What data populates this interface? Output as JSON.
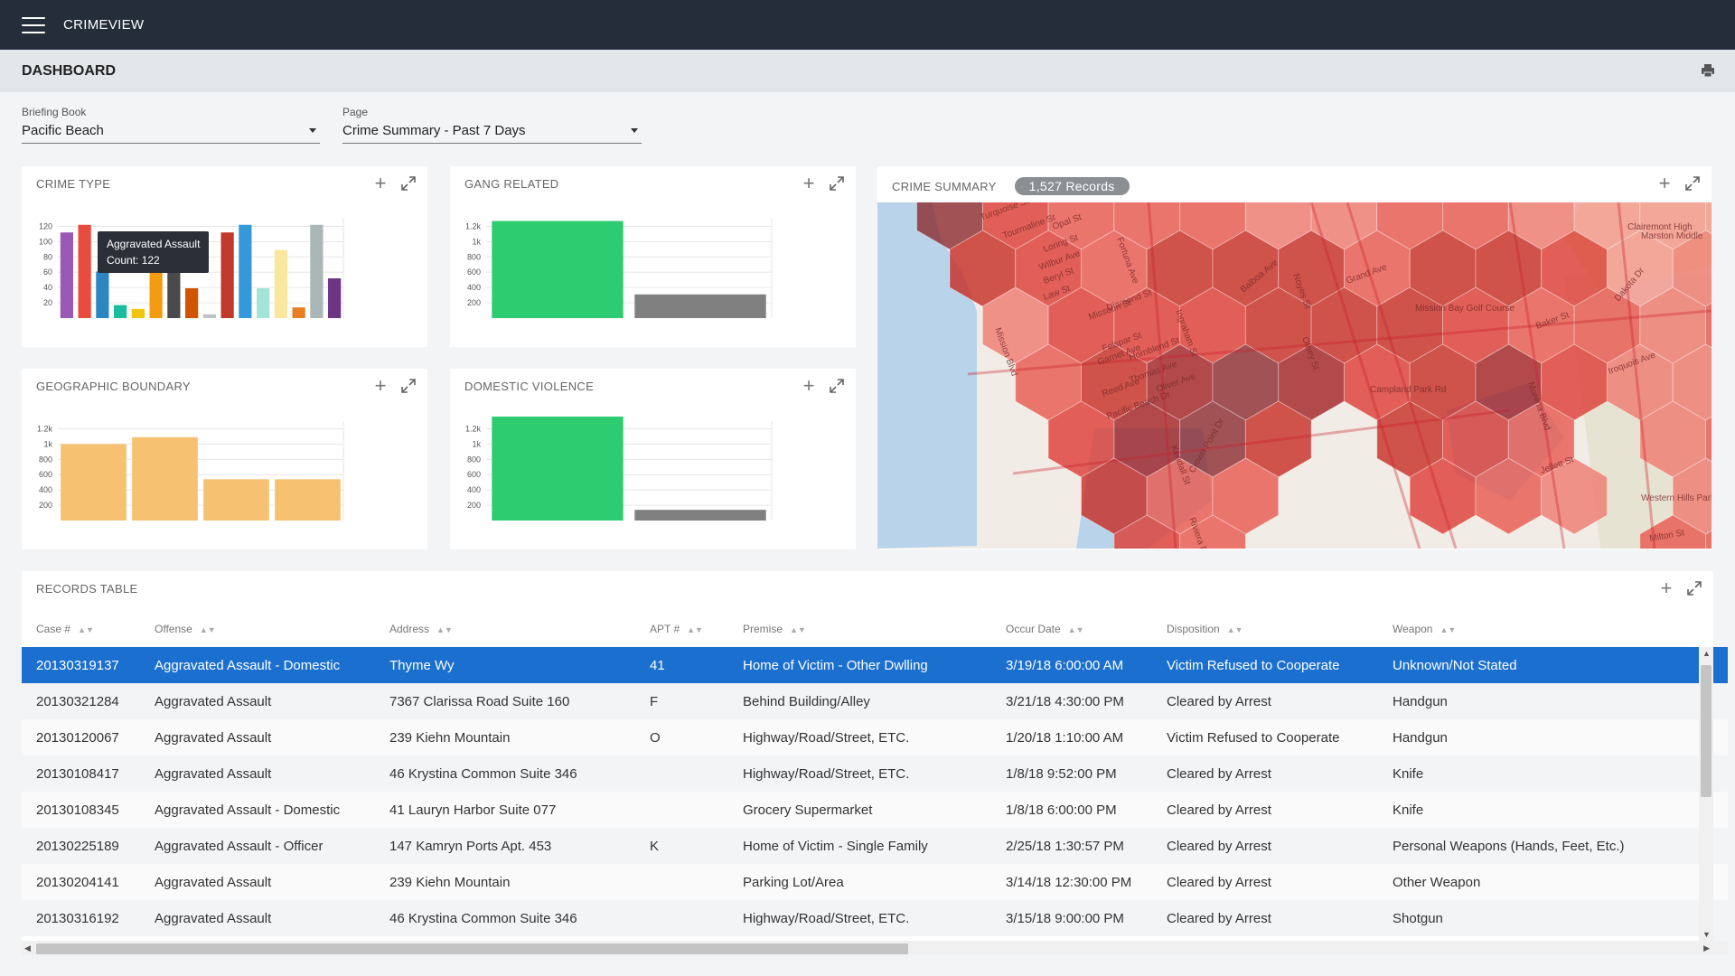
{
  "app": {
    "title": "CRIMEVIEW"
  },
  "page": {
    "title": "DASHBOARD"
  },
  "icons": {
    "menu": "hamburger-menu-icon",
    "print": "printer-icon",
    "add": "plus-icon",
    "expand": "expand-icon",
    "sort": "sort-icon"
  },
  "filters": {
    "briefing_book": {
      "label": "Briefing Book",
      "value": "Pacific Beach"
    },
    "page": {
      "label": "Page",
      "value": "Crime Summary - Past 7 Days"
    }
  },
  "cards": {
    "crime_type": {
      "title": "CRIME TYPE"
    },
    "gang_related": {
      "title": "GANG RELATED"
    },
    "geographic_boundary": {
      "title": "GEOGRAPHIC BOUNDARY"
    },
    "domestic_violence": {
      "title": "DOMESTIC VIOLENCE"
    },
    "crime_summary": {
      "title": "CRIME SUMMARY",
      "badge": "1,527 Records"
    },
    "records_table": {
      "title": "RECORDS TABLE"
    }
  },
  "tooltip": {
    "line1": "Aggravated Assault",
    "line2": "Count: 122"
  },
  "chart_data": [
    {
      "id": "crime_type",
      "type": "bar",
      "ylim": [
        0,
        130
      ],
      "yticks": [
        20,
        40,
        60,
        80,
        100,
        120
      ],
      "ytick_labels": [
        "20",
        "40",
        "60",
        "80",
        "100",
        "120"
      ],
      "values": [
        112,
        122,
        61,
        17,
        12,
        112,
        112,
        39,
        5,
        112,
        122,
        39,
        89,
        14,
        122,
        52
      ],
      "colors": [
        "#9b59b6",
        "#e74c3c",
        "#2e86c1",
        "#1abc9c",
        "#f1c40f",
        "#f39c12",
        "#4a4a4a",
        "#d35400",
        "#bdc3c7",
        "#c0392b",
        "#3498db",
        "#a3e4d7",
        "#f9e79f",
        "#e67e22",
        "#aab7b8",
        "#6c3483"
      ]
    },
    {
      "id": "gang_related",
      "type": "bar",
      "ylim": [
        0,
        1300
      ],
      "yticks": [
        200,
        400,
        600,
        800,
        1000,
        1200
      ],
      "ytick_labels": [
        "200",
        "400",
        "600",
        "800",
        "1k",
        "1.2k"
      ],
      "values": [
        1270,
        310
      ],
      "colors": [
        "#2ecc71",
        "#808080"
      ]
    },
    {
      "id": "geographic_boundary",
      "type": "bar",
      "ylim": [
        0,
        1300
      ],
      "yticks": [
        200,
        400,
        600,
        800,
        1000,
        1200
      ],
      "ytick_labels": [
        "200",
        "400",
        "600",
        "800",
        "1k",
        "1.2k"
      ],
      "values": [
        1000,
        1090,
        540,
        540
      ],
      "colors": [
        "#f6c271",
        "#f6c271",
        "#f6c271",
        "#f6c271"
      ]
    },
    {
      "id": "domestic_violence",
      "type": "bar",
      "ylim": [
        0,
        1300
      ],
      "yticks": [
        200,
        400,
        600,
        800,
        1000,
        1200
      ],
      "ytick_labels": [
        "200",
        "400",
        "600",
        "800",
        "1k",
        "1.2k"
      ],
      "values": [
        1360,
        140
      ],
      "colors": [
        "#2ecc71",
        "#808080"
      ]
    }
  ],
  "map": {
    "street_labels": [
      "Turquoise St",
      "Tourmaline St",
      "Opal St",
      "Loring St",
      "Wilbur Ave",
      "Beryl St",
      "Law St",
      "Fortuna Ave",
      "Grand Ave",
      "Mission Blvd",
      "Missouri St",
      "Diamond St",
      "Felspar St",
      "Garnet Ave",
      "Hornblend St",
      "Thomas Ave",
      "Reed Ave",
      "Oliver Ave",
      "Pacific Beach Dr",
      "Crown Point Dr",
      "Balboa Ave",
      "Olney St",
      "Noyes St",
      "Kendall St",
      "Ingraham St",
      "Riviera Dr",
      "Dakota Dr",
      "Baker St",
      "Iroquois Ave",
      "Morena Blvd",
      "Jellett St",
      "Milton St",
      "Marston Middle",
      "Western Hills Park",
      "Campland Park Rd",
      "Mission Bay Golf Course",
      "Clairemont High"
    ]
  },
  "table": {
    "columns": [
      "Case #",
      "Offense",
      "Address",
      "APT #",
      "Premise",
      "Occur Date",
      "Disposition",
      "Weapon"
    ],
    "rows": [
      [
        "20130319137",
        "Aggravated Assault - Domestic",
        "Thyme Wy",
        "41",
        "Home of Victim - Other Dwlling",
        "3/19/18 6:00:00 AM",
        "Victim Refused to Cooperate",
        "Unknown/Not Stated"
      ],
      [
        "20130321284",
        "Aggravated Assault",
        "7367 Clarissa Road Suite 160",
        "F",
        "Behind Building/Alley",
        "3/21/18 4:30:00 PM",
        "Cleared by Arrest",
        "Handgun"
      ],
      [
        "20130120067",
        "Aggravated Assault",
        "239 Kiehn Mountain",
        "O",
        "Highway/Road/Street, ETC.",
        "1/20/18 1:10:00 AM",
        "Victim Refused to Cooperate",
        "Handgun"
      ],
      [
        "20130108417",
        "Aggravated Assault",
        "46 Krystina Common Suite 346",
        "",
        "Highway/Road/Street, ETC.",
        "1/8/18 9:52:00 PM",
        "Cleared by Arrest",
        "Knife"
      ],
      [
        "20130108345",
        "Aggravated Assault - Domestic",
        "41 Lauryn Harbor Suite 077",
        "",
        "Grocery Supermarket",
        "1/8/18 6:00:00 PM",
        "Cleared by Arrest",
        "Knife"
      ],
      [
        "20130225189",
        "Aggravated Assault - Officer",
        "147 Kamryn Ports Apt. 453",
        "K",
        "Home of Victim - Single Family",
        "2/25/18 1:30:57 PM",
        "Cleared by Arrest",
        "Personal Weapons (Hands, Feet, Etc.)"
      ],
      [
        "20130204141",
        "Aggravated Assault",
        "239 Kiehn Mountain",
        "",
        "Parking Lot/Area",
        "3/14/18 12:30:00 PM",
        "Cleared by Arrest",
        "Other Weapon"
      ],
      [
        "20130316192",
        "Aggravated Assault",
        "46 Krystina Common Suite 346",
        "",
        "Highway/Road/Street, ETC.",
        "3/15/18 9:00:00 PM",
        "Cleared by Arrest",
        "Shotgun"
      ]
    ],
    "selected_row": 0
  }
}
